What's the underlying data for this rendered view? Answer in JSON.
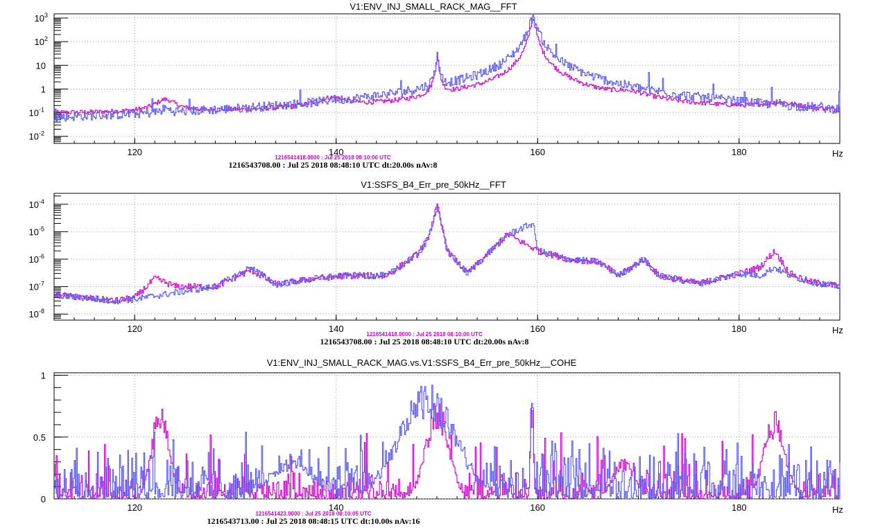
{
  "chart_data": [
    {
      "type": "line",
      "title": "V1:ENV_INJ_SMALL_RACK_MAG__FFT",
      "subtitle_ref": "1216541418.0000 : Jul 25 2018 08:10:00 UTC",
      "subtitle_main": "1216543708.00 : Jul 25 2018 08:48:10 UTC dt:20.00s nAv:8",
      "xlabel": "",
      "ylabel": "",
      "yscale": "log",
      "xlim": [
        112,
        190
      ],
      "ylim": [
        0.005,
        1500
      ],
      "xticks": [
        120,
        140,
        160,
        180
      ],
      "yticks": [
        0.01,
        0.1,
        1,
        10,
        100,
        1000
      ],
      "ytick_labels": [
        {
          "base": "10",
          "exp": "-2"
        },
        {
          "base": "10",
          "exp": "-1"
        },
        {
          "base": "1",
          "exp": ""
        },
        {
          "base": "10",
          "exp": ""
        },
        {
          "base": "10",
          "exp": "2"
        },
        {
          "base": "10",
          "exp": "3"
        }
      ],
      "grid": true,
      "colors": {
        "magenta": "#cc00cc",
        "blue": "#5555ee"
      },
      "series": [
        {
          "color": "magenta",
          "base": 0.08,
          "peaks": [
            [
              123,
              0.25,
              1.0
            ],
            [
              139.5,
              0.25,
              1.5
            ],
            [
              150,
              25,
              0.12
            ],
            [
              153,
              0.2,
              1.5
            ],
            [
              159.5,
              1000,
              0.2
            ],
            [
              169,
              0.35,
              2.0
            ],
            [
              184,
              0.12,
              2.0
            ]
          ]
        },
        {
          "color": "blue",
          "base": 0.01,
          "peaks": [
            [
              123,
              0.05,
              0.4
            ],
            [
              139.5,
              0.1,
              0.2
            ],
            [
              150,
              25,
              0.12
            ],
            [
              155,
              0.04,
              3.0
            ],
            [
              159.5,
              1000,
              0.35
            ],
            [
              167,
              0.1,
              0.15
            ],
            [
              184,
              0.03,
              0.2
            ],
            [
              188,
              0.02,
              0.15
            ]
          ]
        }
      ]
    },
    {
      "type": "line",
      "title": "V1:SSFS_B4_Err_pre_50kHz__FFT",
      "subtitle_ref": "1216541418.0000 : Jul 25 2018 08:10:00 UTC",
      "subtitle_main": "1216543708.00 : Jul 25 2018 08:48:10 UTC dt:20.00s nAv:8",
      "xlabel": "",
      "ylabel": "",
      "yscale": "log",
      "xlim": [
        112,
        190
      ],
      "ylim": [
        6e-09,
        0.00025
      ],
      "xticks": [
        120,
        140,
        160,
        180
      ],
      "yticks": [
        1e-08,
        1e-07,
        1e-06,
        1e-05,
        0.0001
      ],
      "ytick_labels": [
        {
          "base": "10",
          "exp": "-8"
        },
        {
          "base": "10",
          "exp": "-7"
        },
        {
          "base": "10",
          "exp": "-6"
        },
        {
          "base": "10",
          "exp": "-5"
        },
        {
          "base": "10",
          "exp": "-4"
        }
      ],
      "grid": true,
      "colors": {
        "magenta": "#cc00cc",
        "blue": "#5555ee"
      },
      "series": [
        {
          "color": "magenta",
          "points": [
            [
              112,
              5e-08
            ],
            [
              118,
              3e-08
            ],
            [
              120,
              4e-08
            ],
            [
              122,
              2e-07
            ],
            [
              124,
              1e-07
            ],
            [
              128,
              1e-07
            ],
            [
              131.5,
              4e-07
            ],
            [
              134,
              1.2e-07
            ],
            [
              138,
              2e-07
            ],
            [
              141,
              2.5e-07
            ],
            [
              145,
              2.5e-07
            ],
            [
              148,
              1.5e-06
            ],
            [
              149,
              5e-06
            ],
            [
              150,
              9e-05
            ],
            [
              151,
              2e-06
            ],
            [
              153,
              3e-07
            ],
            [
              157,
              8e-06
            ],
            [
              160,
              2e-06
            ],
            [
              163,
              1e-06
            ],
            [
              166,
              8e-07
            ],
            [
              168,
              2.5e-07
            ],
            [
              170.5,
              1e-06
            ],
            [
              172,
              2.5e-07
            ],
            [
              176,
              1.3e-07
            ],
            [
              180,
              3e-07
            ],
            [
              182,
              5e-07
            ],
            [
              183.5,
              2e-06
            ],
            [
              185,
              3e-07
            ],
            [
              187,
              1.5e-07
            ],
            [
              190,
              1e-07
            ]
          ]
        },
        {
          "color": "blue",
          "points": [
            [
              112,
              5e-08
            ],
            [
              118,
              3e-08
            ],
            [
              120,
              3.5e-08
            ],
            [
              124,
              6e-08
            ],
            [
              128,
              1e-07
            ],
            [
              131.5,
              5e-07
            ],
            [
              134,
              1.2e-07
            ],
            [
              138,
              2e-07
            ],
            [
              141,
              2.5e-07
            ],
            [
              145,
              2.5e-07
            ],
            [
              148,
              1.5e-06
            ],
            [
              149,
              4e-06
            ],
            [
              150,
              9e-05
            ],
            [
              151,
              2e-06
            ],
            [
              153,
              3e-07
            ],
            [
              157,
              8e-06
            ],
            [
              159.5,
              2e-05
            ],
            [
              160,
              2e-06
            ],
            [
              163,
              1e-06
            ],
            [
              166,
              8e-07
            ],
            [
              168,
              2.5e-07
            ],
            [
              170.5,
              1e-06
            ],
            [
              172,
              2.5e-07
            ],
            [
              176,
              1.3e-07
            ],
            [
              180,
              3e-07
            ],
            [
              182,
              2.5e-07
            ],
            [
              183.5,
              5e-07
            ],
            [
              185,
              2.5e-07
            ],
            [
              187,
              1.5e-07
            ],
            [
              190,
              1e-07
            ]
          ]
        }
      ]
    },
    {
      "type": "line",
      "title": "V1:ENV_INJ_SMALL_RACK_MAG.vs.V1:SSFS_B4_Err_pre_50kHz__COHE",
      "subtitle_ref": "1216541423.0000 : Jul 25 2018 08:10:05 UTC",
      "subtitle_main": "1216543713.00 : Jul 25 2018 08:48:15 UTC dt:10.00s nAv:16",
      "xlabel": "",
      "ylabel": "",
      "yscale": "linear",
      "xlim": [
        112,
        190
      ],
      "ylim": [
        0,
        1.02
      ],
      "xticks": [
        120,
        140,
        160,
        180
      ],
      "yticks": [
        0,
        0.5,
        1
      ],
      "ytick_labels": [
        {
          "base": "0",
          "exp": ""
        },
        {
          "base": "0.5",
          "exp": ""
        },
        {
          "base": "1",
          "exp": ""
        }
      ],
      "grid": true,
      "colors": {
        "magenta": "#cc00cc",
        "blue": "#5555ee"
      },
      "series": [
        {
          "color": "magenta",
          "base": 0.08,
          "humps": [
            [
              122.5,
              0.75,
              1.2
            ],
            [
              150,
              0.75,
              1.6
            ],
            [
              159.4,
              0.95,
              0.2
            ],
            [
              183.5,
              0.65,
              1.5
            ],
            [
              168.5,
              0.3,
              1.5
            ]
          ]
        },
        {
          "color": "blue",
          "base": 0.15,
          "humps": [
            [
              149,
              0.85,
              4.0
            ],
            [
              159.4,
              0.95,
              0.2
            ],
            [
              135.5,
              0.3,
              3.0
            ]
          ]
        }
      ]
    }
  ],
  "x_axis_unit": "Hz"
}
